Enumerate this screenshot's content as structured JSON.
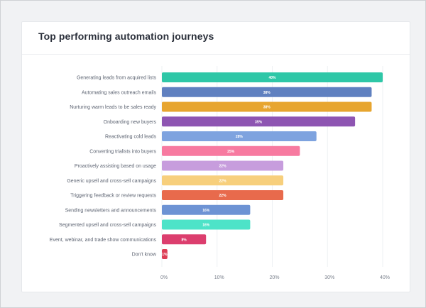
{
  "chart_data": {
    "type": "bar",
    "orientation": "horizontal",
    "title": "Top performing automation journeys",
    "xlabel": "",
    "ylabel": "",
    "xlim": [
      0,
      40
    ],
    "xticks": [
      0,
      10,
      20,
      30,
      40
    ],
    "tick_suffix": "%",
    "grid": true,
    "categories": [
      "Generating leads from acquired lists",
      "Automating sales outreach emails",
      "Nurturing warm leads to be sales ready",
      "Onboarding new buyers",
      "Reactivating cold leads",
      "Converting trialists into buyers",
      "Proactively assisting based on usage",
      "Generic upsell and cross-sell campaigns",
      "Triggering feedback or review requests",
      "Sending newsletters and announcements",
      "Segmented upsell and cross-sell campaigns",
      "Event, webinar, and trade show communications",
      "Don't know"
    ],
    "values": [
      40,
      38,
      38,
      35,
      28,
      25,
      22,
      22,
      22,
      16,
      16,
      8,
      1
    ],
    "value_labels": [
      "40%",
      "38%",
      "38%",
      "35%",
      "28%",
      "25%",
      "22%",
      "22%",
      "22%",
      "16%",
      "16%",
      "8%",
      "1%"
    ],
    "colors": [
      "#2ec7a7",
      "#5f80c0",
      "#e7a52f",
      "#8e55b2",
      "#7ea3df",
      "#f77aa0",
      "#c79ddd",
      "#f7cf7c",
      "#e86a4c",
      "#6d93d4",
      "#4de3c8",
      "#dc3e6e",
      "#dd3e55"
    ]
  }
}
